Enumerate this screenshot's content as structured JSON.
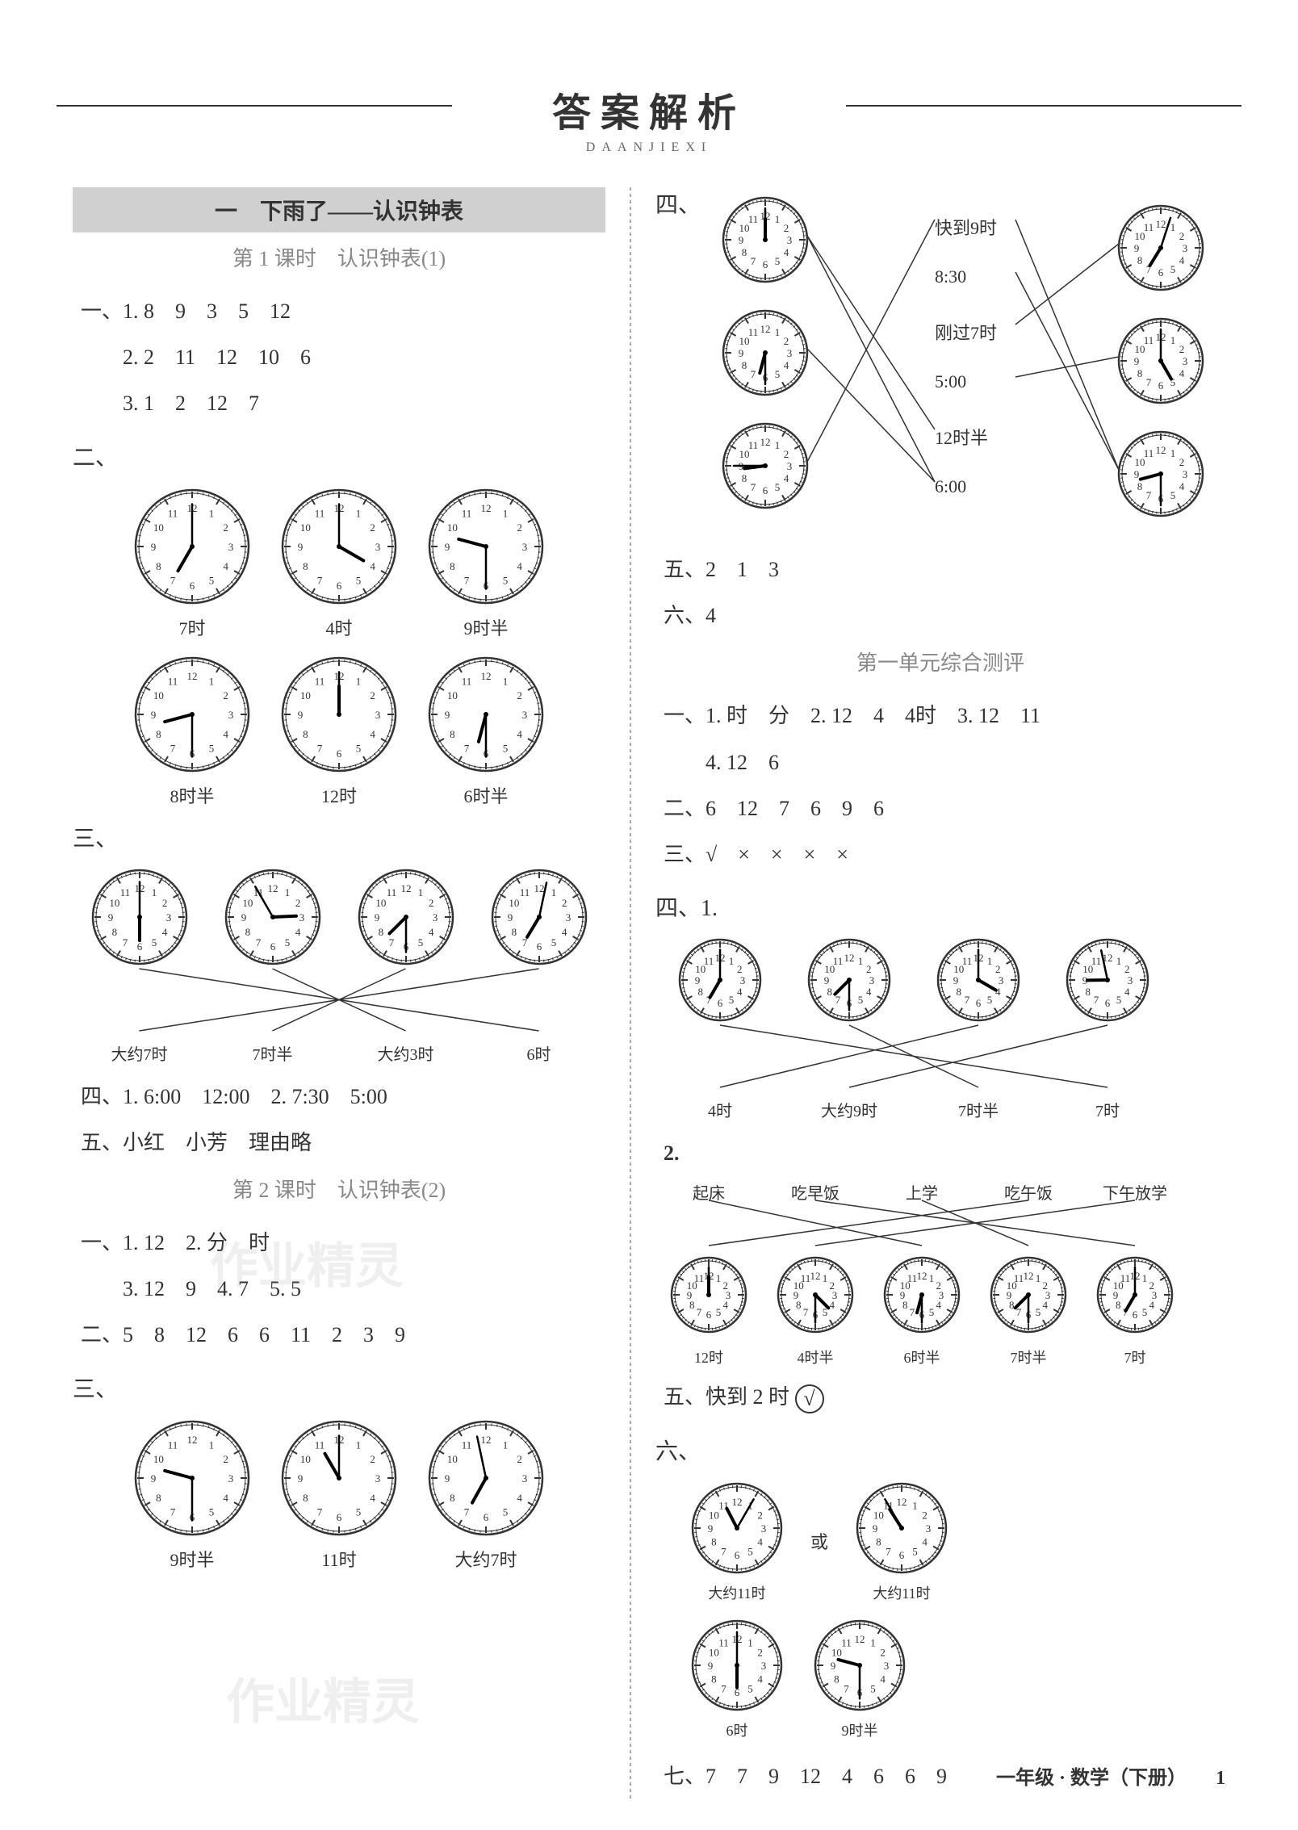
{
  "header": {
    "title": "答案解析",
    "subtitle": "DAANJIEXI"
  },
  "left": {
    "banner": "一　下雨了——认识钟表",
    "lesson1": {
      "title": "第 1 课时　认识钟表(1)",
      "q1_lines": [
        "一、1. 8　9　3　5　12",
        "　　2. 2　11　12　10　6",
        "　　3. 1　2　12　7"
      ],
      "q2_label": "二、",
      "q2_clocks_row1": [
        {
          "h": 7,
          "m": 0,
          "label": "7时"
        },
        {
          "h": 4,
          "m": 0,
          "label": "4时"
        },
        {
          "h": 9,
          "m": 30,
          "label": "9时半"
        }
      ],
      "q2_clocks_row2": [
        {
          "h": 8,
          "m": 30,
          "label": "8时半"
        },
        {
          "h": 12,
          "m": 0,
          "label": "12时"
        },
        {
          "h": 6,
          "m": 30,
          "label": "6时半"
        }
      ],
      "q3_label": "三、",
      "q3_clocks": [
        {
          "h": 6,
          "m": 0
        },
        {
          "h": 2,
          "m": 55
        },
        {
          "h": 7,
          "m": 30
        },
        {
          "h": 7,
          "m": 2
        }
      ],
      "q3_labels": [
        "大约7时",
        "7时半",
        "大约3时",
        "6时"
      ],
      "q3_lines": [
        [
          0,
          3
        ],
        [
          1,
          2
        ],
        [
          2,
          1
        ],
        [
          3,
          0
        ]
      ],
      "q4": "四、1. 6:00　12:00　2. 7:30　5:00",
      "q5": "五、小红　小芳　理由略"
    },
    "lesson2": {
      "title": "第 2 课时　认识钟表(2)",
      "lines": [
        "一、1. 12　2. 分　时",
        "　　3. 12　9　4. 7　5. 5",
        "二、5　8　12　6　6　11　2　3　9"
      ],
      "q3_label": "三、",
      "q3_clocks": [
        {
          "h": 9,
          "m": 30,
          "label": "9时半"
        },
        {
          "h": 11,
          "m": 0,
          "label": "11时"
        },
        {
          "h": 6,
          "m": 58,
          "label": "大约7时"
        }
      ]
    }
  },
  "right": {
    "q4_label": "四、",
    "q4_match": {
      "left_clocks": [
        {
          "h": 12,
          "m": 0,
          "type": "owl"
        },
        {
          "h": 6,
          "m": 30,
          "type": "plain"
        },
        {
          "h": 8,
          "m": 45,
          "type": "plain"
        }
      ],
      "mid_labels": [
        "快到9时",
        "8:30",
        "刚过7时",
        "5:00",
        "12时半",
        "6:00"
      ],
      "right_clocks": [
        {
          "h": 7,
          "m": 3,
          "type": "alarm"
        },
        {
          "h": 5,
          "m": 0,
          "type": "heart"
        },
        {
          "h": 8,
          "m": 30,
          "type": "alarm"
        }
      ]
    },
    "q5": "五、2　1　3",
    "q6": "六、4",
    "unit_test": {
      "title": "第一单元综合测评",
      "lines": [
        "一、1. 时　分　2. 12　4　4时　3. 12　11",
        "　　4. 12　6",
        "二、6　12　7　6　9　6",
        "三、√　×　×　×　×"
      ],
      "q4_label": "四、1.",
      "q4_1_clocks": [
        {
          "h": 7,
          "m": 0
        },
        {
          "h": 7,
          "m": 30
        },
        {
          "h": 4,
          "m": 0
        },
        {
          "h": 8,
          "m": 58
        }
      ],
      "q4_1_labels": [
        "4时",
        "大约9时",
        "7时半",
        "7时"
      ],
      "q4_1_lines": [
        [
          0,
          3
        ],
        [
          1,
          2
        ],
        [
          2,
          0
        ],
        [
          3,
          1
        ]
      ],
      "q4_2_label": "2.",
      "q4_2_top": [
        "起床",
        "吃早饭",
        "上学",
        "吃午饭",
        "下午放学"
      ],
      "q4_2_clocks": [
        {
          "h": 12,
          "m": 0
        },
        {
          "h": 4,
          "m": 30
        },
        {
          "h": 6,
          "m": 30
        },
        {
          "h": 7,
          "m": 30
        },
        {
          "h": 7,
          "m": 0
        }
      ],
      "q4_2_labels": [
        "12时",
        "4时半",
        "6时半",
        "7时半",
        "7时"
      ],
      "q4_2_lines": [
        [
          0,
          2
        ],
        [
          1,
          4
        ],
        [
          2,
          3
        ],
        [
          3,
          0
        ],
        [
          4,
          1
        ]
      ],
      "q5": "五、快到 2 时",
      "q5_check": "√",
      "q6_label": "六、",
      "q6_clocks_r1": [
        {
          "h": 11,
          "m": 5,
          "label": "大约11时"
        },
        {
          "h": 10,
          "m": 55,
          "label": "大约11时"
        }
      ],
      "q6_or": "或",
      "q6_clocks_r2": [
        {
          "h": 6,
          "m": 0,
          "label": "6时"
        },
        {
          "h": 9,
          "m": 30,
          "label": "9时半"
        }
      ],
      "q7": "七、7　7　9　12　4　6　6　9"
    }
  },
  "footer": {
    "text": "一年级 · 数学（下册）",
    "page": "1"
  },
  "clock_style": {
    "radius": 70,
    "radius_sm": 55,
    "face_fill": "#ffffff",
    "stroke": "#333333",
    "stroke_w": 2.5,
    "tick_color": "#333",
    "num_color": "#333",
    "num_size": 13,
    "hour_len": 0.5,
    "min_len": 0.75,
    "hand_w": 3
  }
}
